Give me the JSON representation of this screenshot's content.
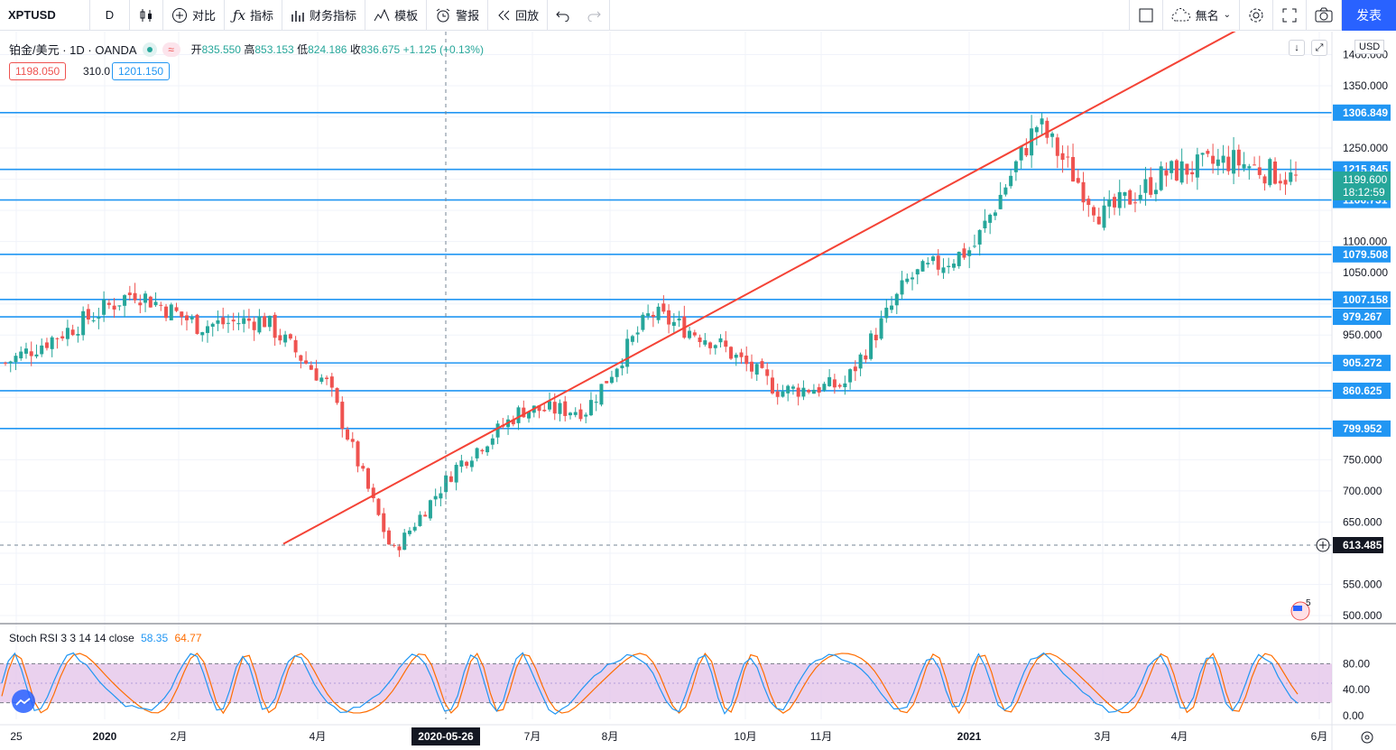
{
  "toolbar": {
    "symbol": "XPTUSD",
    "interval": "D",
    "compare": "对比",
    "indicators": "指标",
    "financials": "财务指标",
    "templates": "模板",
    "alert": "警报",
    "replay": "回放",
    "layout_name": "無名",
    "publish": "发表"
  },
  "legend": {
    "title": "铂金/美元 · 1D · OANDA",
    "open_label": "开",
    "open": "835.550",
    "high_label": "高",
    "high": "853.153",
    "low_label": "低",
    "low": "824.186",
    "close_label": "收",
    "close": "836.675",
    "change": "+1.125 (+0.13%)",
    "sell_price": "1198.050",
    "spread": "310.0",
    "buy_price": "1201.150"
  },
  "price_axis": {
    "currency": "USD",
    "ticks": [
      "1400.000",
      "1350.000",
      "1250.000",
      "1100.000",
      "1050.000",
      "950.000",
      "750.000",
      "700.000",
      "650.000",
      "550.000",
      "500.000"
    ],
    "hline_labels": [
      "1306.849",
      "1215.845",
      "1166.731",
      "1079.508",
      "1007.158",
      "979.267",
      "905.272",
      "860.625",
      "799.952"
    ],
    "current_price": "1199.600",
    "countdown": "18:12:59",
    "crosshair_price": "613.485"
  },
  "time_axis": {
    "labels": [
      "25",
      "2020",
      "2月",
      "4月",
      "7月",
      "8月",
      "10月",
      "11月",
      "2021",
      "3月",
      "4月",
      "6月"
    ],
    "crosshair_date": "2020-05-26"
  },
  "rsi": {
    "title": "Stoch RSI 3 3 14 14 close",
    "k": "58.35",
    "d": "64.77",
    "ticks": [
      "80.00",
      "40.00",
      "0.00"
    ]
  },
  "badge": {
    "count": "5"
  },
  "chart_data": {
    "type": "candlestick",
    "symbol": "XPTUSD",
    "interval": "1D",
    "price_range": [
      480,
      1460
    ],
    "horizontal_levels": [
      1306.849,
      1215.845,
      1166.731,
      1079.508,
      1007.158,
      979.267,
      905.272,
      860.625,
      799.952
    ],
    "trendline": {
      "from_price": 615,
      "to_price": 1470
    },
    "approx_close_path": [
      {
        "date": "2019-12",
        "close": 905
      },
      {
        "date": "2020-01",
        "close": 960
      },
      {
        "date": "2020-01-15",
        "close": 1020
      },
      {
        "date": "2020-02",
        "close": 965
      },
      {
        "date": "2020-02-20",
        "close": 975
      },
      {
        "date": "2020-03-05",
        "close": 870
      },
      {
        "date": "2020-03-16",
        "close": 600
      },
      {
        "date": "2020-04",
        "close": 740
      },
      {
        "date": "2020-05-26",
        "close": 830
      },
      {
        "date": "2020-07",
        "close": 830
      },
      {
        "date": "2020-08",
        "close": 985
      },
      {
        "date": "2020-09",
        "close": 940
      },
      {
        "date": "2020-10",
        "close": 860
      },
      {
        "date": "2020-11",
        "close": 870
      },
      {
        "date": "2020-12",
        "close": 1040
      },
      {
        "date": "2021-01",
        "close": 1090
      },
      {
        "date": "2021-02-15",
        "close": 1290
      },
      {
        "date": "2021-03",
        "close": 1140
      },
      {
        "date": "2021-04",
        "close": 1210
      },
      {
        "date": "2021-05",
        "close": 1230
      },
      {
        "date": "2021-05-20",
        "close": 1199.6
      }
    ]
  }
}
